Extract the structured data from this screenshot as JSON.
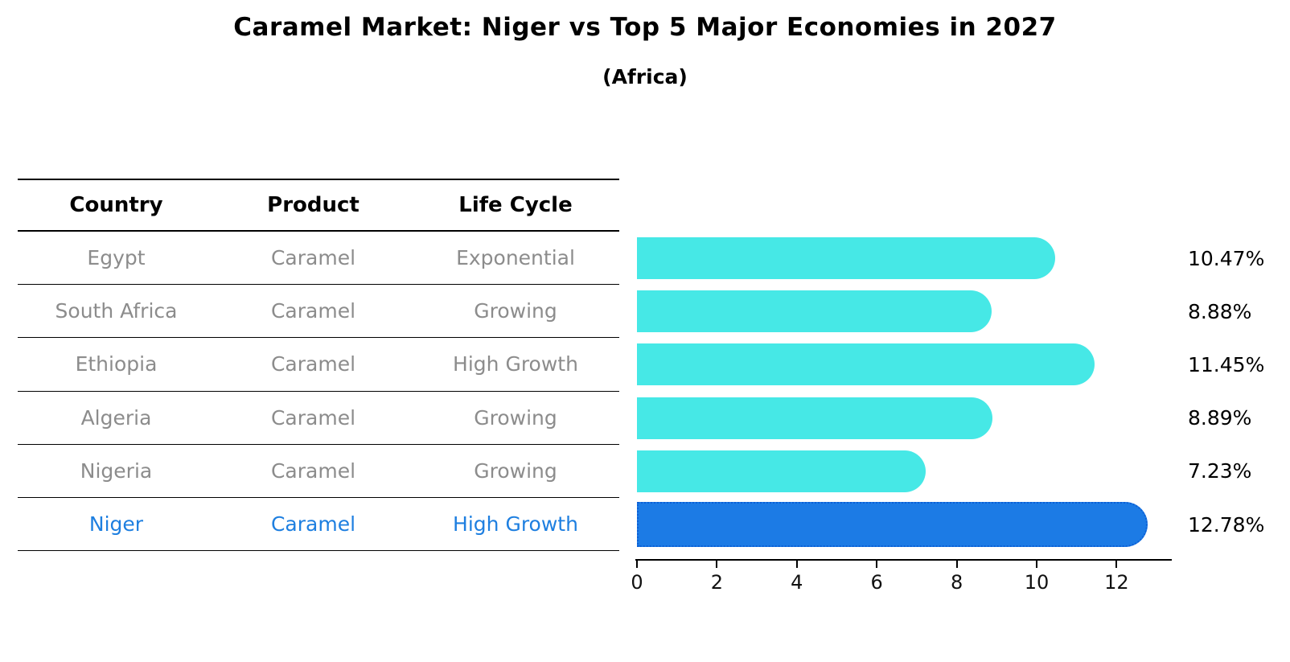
{
  "title": "Caramel Market: Niger vs Top 5 Major Economies in 2027",
  "subtitle": "(Africa)",
  "colors": {
    "bar": "#46e8e6",
    "highlight_bar": "#1c7be5",
    "highlight_border": "#0c5fd6",
    "row_text": "#8c8c8c",
    "highlight_text": "#1e7fe0",
    "axis": "#000000"
  },
  "table": {
    "headers": [
      "Country",
      "Product",
      "Life Cycle"
    ]
  },
  "chart_data": {
    "type": "bar",
    "orientation": "horizontal",
    "title": "Caramel Market: Niger vs Top 5 Major Economies in 2027",
    "subtitle": "(Africa)",
    "xlabel": "",
    "ylabel": "",
    "xlim": [
      0,
      13.38
    ],
    "xticks": [
      0,
      2,
      4,
      6,
      8,
      10,
      12
    ],
    "grid": false,
    "legend": "none",
    "rows": [
      {
        "country": "Egypt",
        "product": "Caramel",
        "life_cycle": "Exponential",
        "value": 10.47,
        "label": "10.47%",
        "highlight": false
      },
      {
        "country": "South Africa",
        "product": "Caramel",
        "life_cycle": "Growing",
        "value": 8.88,
        "label": "8.88%",
        "highlight": false
      },
      {
        "country": "Ethiopia",
        "product": "Caramel",
        "life_cycle": "High Growth",
        "value": 11.45,
        "label": "11.45%",
        "highlight": false
      },
      {
        "country": "Algeria",
        "product": "Caramel",
        "life_cycle": "Growing",
        "value": 8.89,
        "label": "8.89%",
        "highlight": false
      },
      {
        "country": "Nigeria",
        "product": "Caramel",
        "life_cycle": "Growing",
        "value": 7.23,
        "label": "7.23%",
        "highlight": false
      },
      {
        "country": "Niger",
        "product": "Caramel",
        "life_cycle": "High Growth",
        "value": 12.78,
        "label": "12.78%",
        "highlight": true
      }
    ]
  }
}
